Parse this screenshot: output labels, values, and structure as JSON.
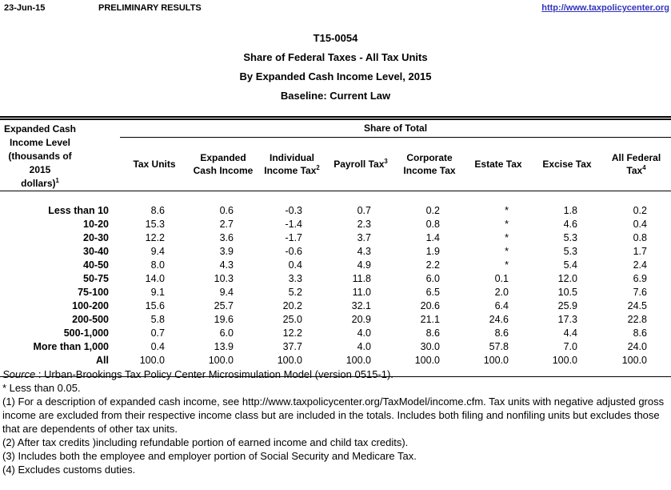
{
  "page_header": {
    "date": "23-Jun-15",
    "status": "PRELIMINARY RESULTS",
    "url": "http://www.taxpolicycenter.org"
  },
  "titles": {
    "table_number": "T15-0054",
    "line1": "Share of Federal Taxes - All Tax Units",
    "line2": "By Expanded Cash Income Level, 2015",
    "line3": "Baseline: Current Law"
  },
  "table": {
    "span_header": "Share of Total",
    "row_header": {
      "lines": [
        "Expanded Cash",
        "Income Level",
        "(thousands of 2015",
        "dollars)"
      ],
      "sup": "1"
    },
    "columns": [
      {
        "id": "tax-units",
        "label": "Tax Units",
        "sup": ""
      },
      {
        "id": "expanded-cash-income",
        "label": "Expanded Cash Income",
        "sup": ""
      },
      {
        "id": "individual-income-tax",
        "label": "Individual Income Tax",
        "sup": "2"
      },
      {
        "id": "payroll-tax",
        "label": "Payroll Tax",
        "sup": "3"
      },
      {
        "id": "corporate-income-tax",
        "label": "Corporate Income Tax",
        "sup": ""
      },
      {
        "id": "estate-tax",
        "label": "Estate Tax",
        "sup": ""
      },
      {
        "id": "excise-tax",
        "label": "Excise Tax",
        "sup": ""
      },
      {
        "id": "all-federal-tax",
        "label": "All Federal Tax",
        "sup": "4"
      }
    ],
    "rows": [
      {
        "label": "Less than 10",
        "values": [
          "8.6",
          "0.6",
          "-0.3",
          "0.7",
          "0.2",
          "*",
          "1.8",
          "0.2"
        ]
      },
      {
        "label": "10-20",
        "values": [
          "15.3",
          "2.7",
          "-1.4",
          "2.3",
          "0.8",
          "*",
          "4.6",
          "0.4"
        ]
      },
      {
        "label": "20-30",
        "values": [
          "12.2",
          "3.6",
          "-1.7",
          "3.7",
          "1.4",
          "*",
          "5.3",
          "0.8"
        ]
      },
      {
        "label": "30-40",
        "values": [
          "9.4",
          "3.9",
          "-0.6",
          "4.3",
          "1.9",
          "*",
          "5.3",
          "1.7"
        ]
      },
      {
        "label": "40-50",
        "values": [
          "8.0",
          "4.3",
          "0.4",
          "4.9",
          "2.2",
          "*",
          "5.4",
          "2.4"
        ]
      },
      {
        "label": "50-75",
        "values": [
          "14.0",
          "10.3",
          "3.3",
          "11.8",
          "6.0",
          "0.1",
          "12.0",
          "6.9"
        ]
      },
      {
        "label": "75-100",
        "values": [
          "9.1",
          "9.4",
          "5.2",
          "11.0",
          "6.5",
          "2.0",
          "10.5",
          "7.6"
        ]
      },
      {
        "label": "100-200",
        "values": [
          "15.6",
          "25.7",
          "20.2",
          "32.1",
          "20.6",
          "6.4",
          "25.9",
          "24.5"
        ]
      },
      {
        "label": "200-500",
        "values": [
          "5.8",
          "19.6",
          "25.0",
          "20.9",
          "21.1",
          "24.6",
          "17.3",
          "22.8"
        ]
      },
      {
        "label": "500-1,000",
        "values": [
          "0.7",
          "6.0",
          "12.2",
          "4.0",
          "8.6",
          "8.6",
          "4.4",
          "8.6"
        ]
      },
      {
        "label": "More than 1,000",
        "values": [
          "0.4",
          "13.9",
          "37.7",
          "4.0",
          "30.0",
          "57.8",
          "7.0",
          "24.0"
        ]
      },
      {
        "label": "All",
        "values": [
          "100.0",
          "100.0",
          "100.0",
          "100.0",
          "100.0",
          "100.0",
          "100.0",
          "100.0"
        ]
      }
    ]
  },
  "footnotes": {
    "source_label": "Source",
    "source_rest": " : Urban-Brookings Tax Policy Center Microsimulation Model (version 0515-1).",
    "notes": [
      "* Less than 0.05.",
      "(1) For a description of expanded cash income, see http://www.taxpolicycenter.org/TaxModel/income.cfm. Tax units with negative adjusted gross income are excluded from their respective income class but are included in the totals. Includes both filing and nonfiling units but excludes those that are dependents of other tax units.",
      "(2) After tax credits )including refundable portion of earned income and child tax credits).",
      "(3) Includes both the employee and employer portion of Social Security and Medicare Tax.",
      "(4) Excludes customs duties."
    ]
  },
  "colors": {
    "link_blue": "#3333bb",
    "text": "#000000",
    "background": "#ffffff"
  }
}
